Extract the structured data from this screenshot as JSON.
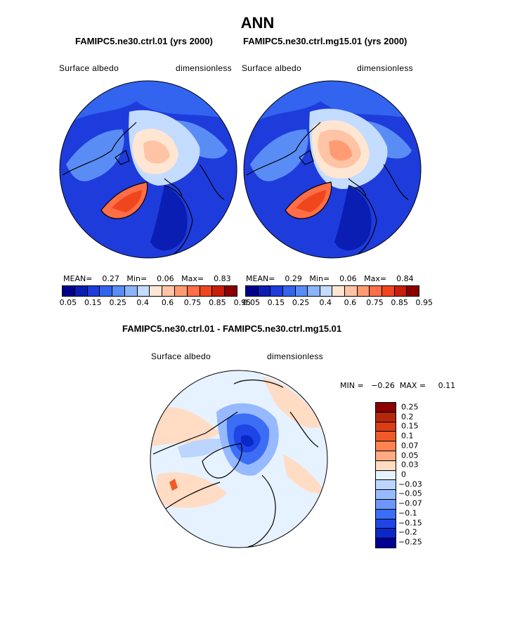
{
  "title": "ANN",
  "panels": [
    {
      "case": "FAMIPC5.ne30.ctrl.01 (yrs 2000)",
      "variable": "Surface albedo",
      "units": "dimensionless",
      "mean_label": "MEAN=",
      "mean": "0.27",
      "min_label": "Min=",
      "min": "0.06",
      "max_label": "Max=",
      "max": "0.83"
    },
    {
      "case": "FAMIPC5.ne30.ctrl.mg15.01 (yrs 2000)",
      "variable": "Surface albedo",
      "units": "dimensionless",
      "mean_label": "MEAN=",
      "mean": "0.29",
      "min_label": "Min=",
      "min": "0.06",
      "max_label": "Max=",
      "max": "0.84"
    }
  ],
  "diff_panel": {
    "case": "FAMIPC5.ne30.ctrl.01 - FAMIPC5.ne30.ctrl.mg15.01",
    "variable": "Surface albedo",
    "units": "dimensionless",
    "minmax_text": "MIN =   −0.26  MAX =     0.11"
  },
  "abs_colorbar": {
    "colors": [
      "#00008b",
      "#0a1eb4",
      "#1e3cdc",
      "#3264f0",
      "#5a8cf5",
      "#8cb4fa",
      "#c3dcff",
      "#ffe6d2",
      "#ffc3a5",
      "#ff9b73",
      "#ff6e46",
      "#f0461e",
      "#c81e0a",
      "#8b0000"
    ],
    "ticks": [
      "0.05",
      "0.15",
      "0.25",
      "0.4",
      "0.6",
      "0.75",
      "0.85",
      "0.95"
    ]
  },
  "diff_colorbar": {
    "colors": [
      "#8b0000",
      "#b4280a",
      "#dc3c14",
      "#f05a28",
      "#ff8250",
      "#ffaa82",
      "#ffdcc3",
      "#e6f2ff",
      "#bcd5ff",
      "#96b9ff",
      "#6e96fa",
      "#3c6ef5",
      "#1e46e6",
      "#0a28c8",
      "#000096"
    ],
    "ticks": [
      "0.25",
      "0.2",
      "0.15",
      "0.1",
      "0.07",
      "0.05",
      "0.03",
      "0",
      "−0.03",
      "−0.05",
      "−0.07",
      "−0.1",
      "−0.15",
      "−0.2",
      "−0.25"
    ]
  },
  "map_icon": "polar-stereographic-map"
}
